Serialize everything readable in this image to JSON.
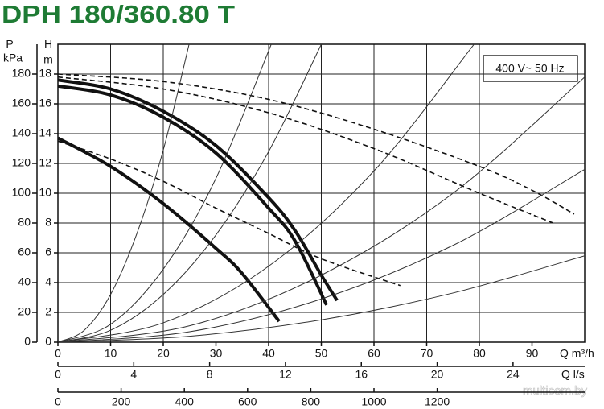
{
  "chart_data": {
    "type": "line",
    "title": "DPH 180/360.80 T",
    "annotation": "400 V~ 50 Hz",
    "watermark": "multicom.by",
    "y_label": "H",
    "y_unit": "m",
    "y2_label": "P",
    "y2_unit": "kPa",
    "x_label": "Q m³/h",
    "x2_label": "Q l/s",
    "title_color": "#1e7b34",
    "xlim": [
      0,
      100
    ],
    "xticks": [
      0,
      10,
      20,
      30,
      40,
      50,
      60,
      70,
      80,
      90
    ],
    "x2lim": [
      0,
      27.78
    ],
    "x2ticks": [
      0,
      4,
      8,
      12,
      16,
      20,
      24
    ],
    "x3lim": [
      0,
      1666.67
    ],
    "x3ticks": [
      0,
      200,
      400,
      600,
      800,
      1000,
      1200
    ],
    "ylim": [
      0,
      20
    ],
    "yticks": [
      0,
      2,
      4,
      6,
      8,
      10,
      12,
      14,
      16,
      18
    ],
    "y2lim": [
      0,
      200
    ],
    "y2ticks": [
      0,
      20,
      40,
      60,
      80,
      100,
      120,
      140,
      160,
      180
    ],
    "grid": true,
    "series": [
      {
        "color": "#111111",
        "style": "thick",
        "x": [
          0,
          10,
          20,
          30,
          40,
          45,
          50,
          53
        ],
        "values": [
          17.6,
          17.0,
          15.5,
          13.2,
          9.7,
          7.5,
          4.5,
          2.8
        ]
      },
      {
        "color": "#111111",
        "style": "thick",
        "x": [
          0,
          10,
          20,
          30,
          40,
          45,
          51
        ],
        "values": [
          17.2,
          16.6,
          15.1,
          12.7,
          9.0,
          6.8,
          2.5
        ]
      },
      {
        "color": "#111111",
        "style": "thick",
        "x": [
          0,
          10,
          20,
          30,
          35,
          42
        ],
        "values": [
          13.7,
          11.8,
          9.3,
          6.3,
          4.6,
          1.4
        ]
      },
      {
        "color": "#111111",
        "style": "dashed",
        "x": [
          0,
          20,
          40,
          60,
          80,
          90,
          98
        ],
        "values": [
          18.0,
          17.5,
          16.3,
          14.3,
          11.8,
          10.2,
          8.6
        ]
      },
      {
        "color": "#111111",
        "style": "dashed",
        "x": [
          0,
          20,
          40,
          60,
          80,
          94
        ],
        "values": [
          17.8,
          17.0,
          15.4,
          13.0,
          10.0,
          8.0
        ]
      },
      {
        "color": "#111111",
        "style": "dashed",
        "x": [
          0,
          10,
          20,
          30,
          40,
          50,
          65
        ],
        "values": [
          13.5,
          12.3,
          10.8,
          9.0,
          7.3,
          5.6,
          3.8
        ]
      },
      {
        "color": "#333333",
        "style": "thin",
        "x": [
          0,
          5,
          10,
          15,
          20,
          24.9
        ],
        "values": [
          0,
          0.8,
          3.2,
          7.3,
          12.9,
          20
        ]
      },
      {
        "color": "#333333",
        "style": "thin",
        "x": [
          0,
          10,
          20,
          30,
          40.5
        ],
        "values": [
          0,
          1.2,
          4.9,
          11,
          20
        ]
      },
      {
        "color": "#333333",
        "style": "thin",
        "x": [
          0,
          10,
          20,
          30,
          40,
          50
        ],
        "values": [
          0,
          0.8,
          3.2,
          7.2,
          12.8,
          20
        ]
      },
      {
        "color": "#333333",
        "style": "thin",
        "x": [
          0,
          20,
          40,
          60,
          79
        ],
        "values": [
          0,
          1.3,
          5.1,
          11.5,
          20
        ]
      },
      {
        "color": "#333333",
        "style": "thin",
        "x": [
          0,
          25,
          50,
          75,
          100
        ],
        "values": [
          0,
          1.1,
          4.5,
          10,
          17.8
        ]
      },
      {
        "color": "#333333",
        "style": "thin",
        "x": [
          0,
          25,
          50,
          75,
          100
        ],
        "values": [
          0,
          0.7,
          2.9,
          6.5,
          11.6
        ]
      },
      {
        "color": "#333333",
        "style": "thin",
        "x": [
          0,
          25,
          50,
          75,
          100
        ],
        "values": [
          0,
          0.4,
          1.5,
          3.3,
          5.8
        ]
      }
    ]
  }
}
